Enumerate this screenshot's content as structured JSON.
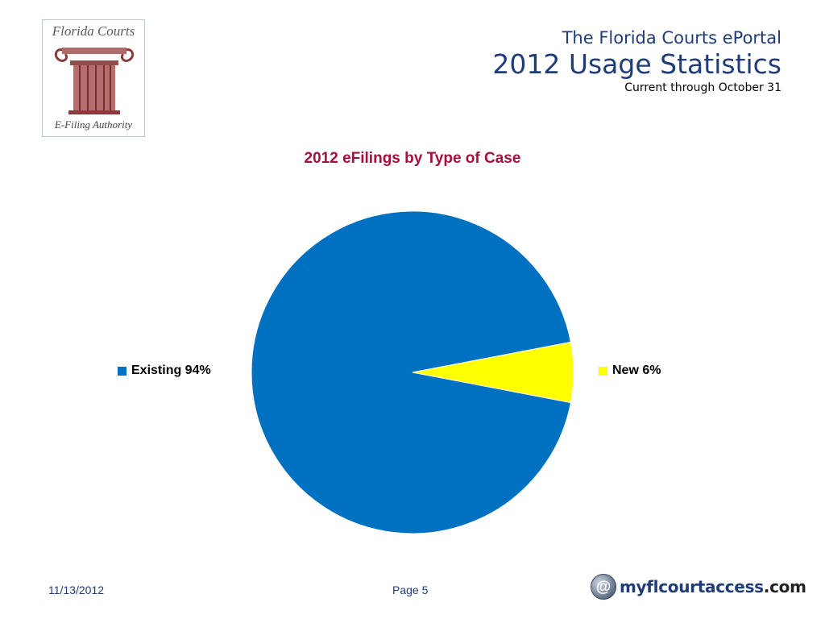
{
  "logo": {
    "top_text": "Florida Courts",
    "bottom_text": "E-Filing Authority"
  },
  "header": {
    "subtitle": "The Florida Courts ePortal",
    "title": "2012 Usage Statistics",
    "note": "Current through October 31"
  },
  "chart_data": {
    "type": "pie",
    "title": "2012 eFilings by Type of Case",
    "categories": [
      "Existing",
      "New"
    ],
    "values": [
      94,
      6
    ],
    "labels": [
      "Existing 94%",
      "New 6%"
    ],
    "colors": [
      "#0070C0",
      "#FFFF00"
    ],
    "legend_placement": "sides"
  },
  "footer": {
    "date": "11/13/2012",
    "page": "Page 5",
    "brand_icon": "@",
    "brand_name": "myflcourtaccess",
    "brand_tld": ".com"
  }
}
